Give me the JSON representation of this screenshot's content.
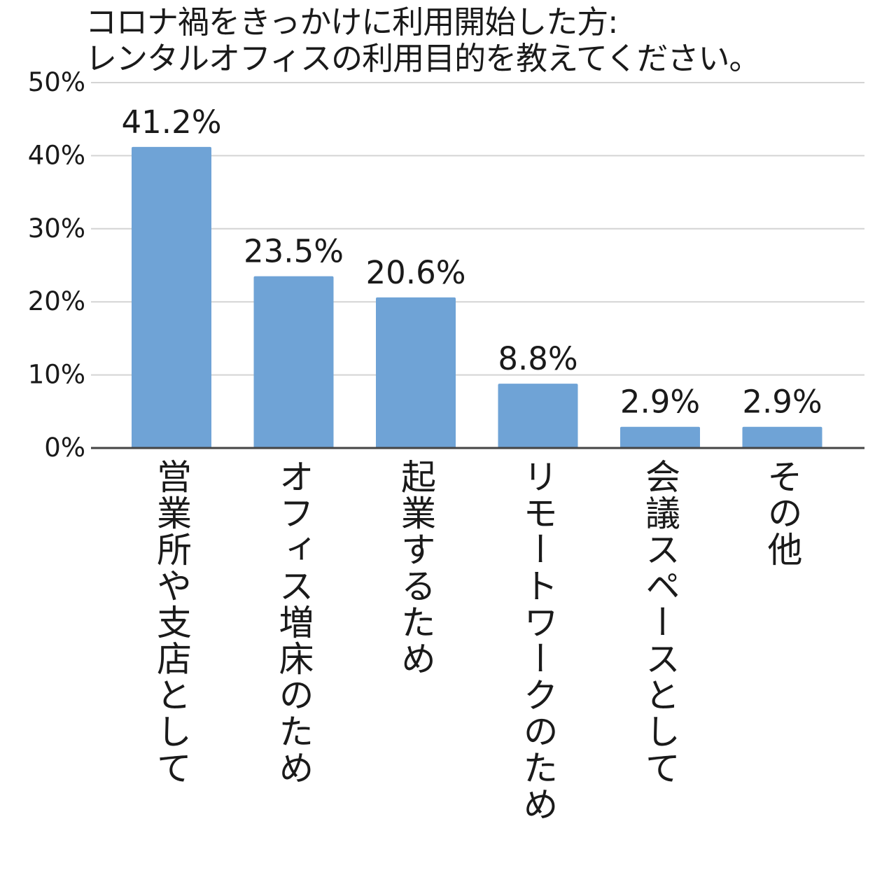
{
  "chart_data": {
    "type": "bar",
    "title": [
      "コロナ禍をきっかけに利用開始した方:",
      "レンタルオフィスの利用目的を教えてください。"
    ],
    "categories": [
      "営業所や支店として",
      "オフィス増床のため",
      "起業するため",
      "リモートワークのため",
      "会議スペースとして",
      "その他"
    ],
    "values": [
      41.2,
      23.5,
      20.6,
      8.8,
      2.9,
      2.9
    ],
    "data_labels": [
      "41.2%",
      "23.5%",
      "20.6%",
      "8.8%",
      "2.9%",
      "2.9%"
    ],
    "unit": "%",
    "ylim": [
      0,
      50
    ],
    "yticks": [
      0,
      10,
      20,
      30,
      40,
      50
    ],
    "ytick_labels": [
      "0%",
      "10%",
      "20%",
      "30%",
      "40%",
      "50%"
    ],
    "grid": true,
    "legend": "none",
    "bar_color": "#6fa3d6",
    "grid_color": "#d4d4d4",
    "axis_color": "#444444"
  }
}
